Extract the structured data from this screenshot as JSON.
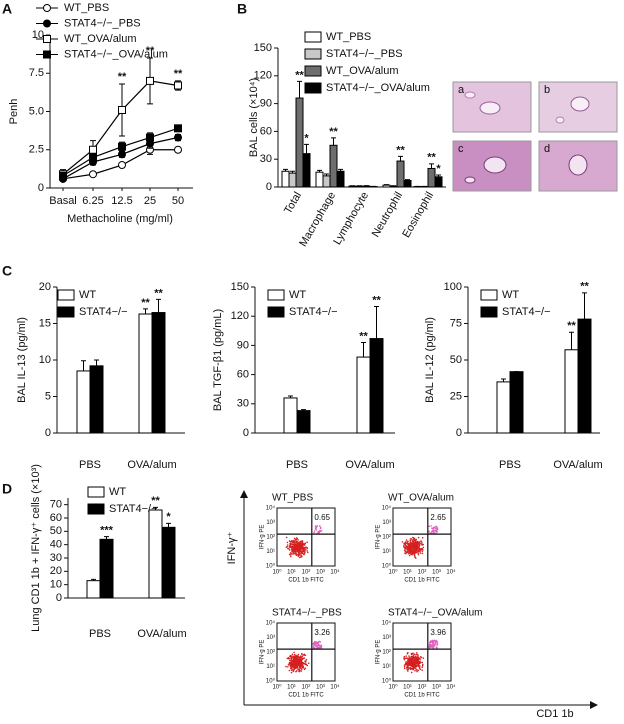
{
  "panels": [
    "A",
    "B",
    "C",
    "D"
  ],
  "chart_data": [
    {
      "type": "line",
      "ylabel": "Penh",
      "xlabel": "Methacholine (mg/ml)",
      "categories": [
        "Basal",
        "6.25",
        "12.5",
        "25",
        "50"
      ],
      "ylim": [
        0,
        10
      ],
      "yticks": [
        0,
        2.5,
        {
          "value": 5,
          "label": "5.0"
        },
        7.5,
        10
      ],
      "series": [
        {
          "name": "WT_PBS",
          "color": "#ffffff",
          "marker": "circle",
          "values": [
            0.6,
            0.9,
            1.5,
            2.5,
            2.5
          ],
          "errors": [
            0.1,
            0.1,
            0.1,
            0.3,
            0.1
          ]
        },
        {
          "name": "STAT4−/−_PBS",
          "color": "#000000",
          "marker": "circle",
          "values": [
            0.6,
            1.7,
            2.2,
            2.9,
            3.3
          ],
          "errors": [
            0.1,
            0.2,
            0.2,
            0.3,
            0.2
          ]
        },
        {
          "name": "WT_OVA/alum",
          "color": "#ffffff",
          "marker": "square",
          "values": [
            0.9,
            2.5,
            5.1,
            7.0,
            6.7
          ],
          "errors": [
            0.3,
            0.6,
            1.7,
            1.5,
            0.3
          ],
          "significance": [
            null,
            null,
            "**",
            "**",
            "**"
          ]
        },
        {
          "name": "STAT4−/−_OVA/alum",
          "color": "#000000",
          "marker": "square",
          "values": [
            0.8,
            2.0,
            2.7,
            3.3,
            3.9
          ],
          "errors": [
            0.1,
            0.2,
            0.3,
            0.3,
            0.2
          ]
        }
      ]
    },
    {
      "type": "bar",
      "ylabel": "BAL cells (×10⁴)",
      "categories": [
        "Total",
        "Macrophage",
        "Lymphocyte",
        "Neutrophil",
        "Eosinophil"
      ],
      "ylim": [
        0,
        150
      ],
      "yticks": [
        0,
        30,
        60,
        90,
        120,
        150
      ],
      "series": [
        {
          "name": "WT_PBS",
          "color": "#ffffff",
          "values": [
            17,
            16,
            1,
            2,
            0.5
          ],
          "errors": [
            2,
            2,
            0.3,
            0.5,
            0.2
          ]
        },
        {
          "name": "STAT4−/−_PBS",
          "color": "#c8c8c8",
          "values": [
            15,
            12,
            1,
            1,
            0.5
          ],
          "errors": [
            2,
            2,
            0.3,
            0.3,
            0.2
          ]
        },
        {
          "name": "WT_OVA/alum",
          "color": "#6e6e6e",
          "values": [
            96,
            45,
            1,
            28,
            20
          ],
          "errors": [
            18,
            8,
            0.5,
            5,
            5
          ],
          "significance": [
            "**",
            "**",
            null,
            "**",
            "**"
          ]
        },
        {
          "name": "STAT4−/−_OVA/alum",
          "color": "#000000",
          "values": [
            36,
            17,
            0.5,
            7,
            11
          ],
          "errors": [
            10,
            2,
            0.2,
            1,
            2
          ],
          "significance": [
            "*",
            null,
            null,
            null,
            "*"
          ]
        }
      ]
    },
    {
      "type": "bar",
      "ylabel": "BAL IL-13 (pg/ml)",
      "categories": [
        "PBS",
        "OVA/alum"
      ],
      "ylim": [
        0,
        20
      ],
      "yticks": [
        0,
        5,
        10,
        15,
        20
      ],
      "series": [
        {
          "name": "WT",
          "color": "#ffffff",
          "values": [
            8.5,
            16.3
          ],
          "errors": [
            1.4,
            0.7
          ],
          "significance": [
            null,
            "**"
          ]
        },
        {
          "name": "STAT4−/−",
          "color": "#000000",
          "values": [
            9.2,
            16.5
          ],
          "errors": [
            0.8,
            1.8
          ],
          "significance": [
            null,
            "**"
          ]
        }
      ]
    },
    {
      "type": "bar",
      "ylabel": "BAL TGF-β1 (pg/mL)",
      "categories": [
        "PBS",
        "OVA/alum"
      ],
      "ylim": [
        0,
        150
      ],
      "yticks": [
        0,
        30,
        60,
        90,
        120,
        150
      ],
      "series": [
        {
          "name": "WT",
          "color": "#ffffff",
          "values": [
            36,
            78
          ],
          "errors": [
            2,
            15
          ],
          "significance": [
            null,
            "**"
          ]
        },
        {
          "name": "STAT4−/−",
          "color": "#000000",
          "values": [
            23,
            97
          ],
          "errors": [
            1,
            33
          ],
          "significance": [
            null,
            "**"
          ]
        }
      ]
    },
    {
      "type": "bar",
      "ylabel": "BAL IL-12 (pg/ml)",
      "categories": [
        "PBS",
        "OVA/alum"
      ],
      "ylim": [
        0,
        100
      ],
      "yticks": [
        0,
        25,
        50,
        75,
        100
      ],
      "series": [
        {
          "name": "WT",
          "color": "#ffffff",
          "values": [
            35,
            57
          ],
          "errors": [
            2,
            12
          ],
          "significance": [
            null,
            "**"
          ]
        },
        {
          "name": "STAT4−/−",
          "color": "#000000",
          "values": [
            42,
            78
          ],
          "errors": [
            0,
            18
          ],
          "significance": [
            null,
            "**"
          ]
        }
      ]
    },
    {
      "type": "bar",
      "ylabel": "Lung CD1 1b + IFN-γ⁺ cells (×10³)",
      "categories": [
        "PBS",
        "OVA/alum"
      ],
      "ylim": [
        0,
        75
      ],
      "yticks": [
        0,
        10,
        20,
        30,
        40,
        50,
        60,
        70
      ],
      "series": [
        {
          "name": "WT",
          "color": "#ffffff",
          "values": [
            13,
            66
          ],
          "errors": [
            1,
            2
          ],
          "significance": [
            null,
            "**"
          ]
        },
        {
          "name": "STAT4−/−",
          "color": "#000000",
          "values": [
            44,
            53
          ],
          "errors": [
            2,
            3
          ],
          "significance": [
            "***",
            "*"
          ]
        }
      ]
    }
  ],
  "histology": {
    "labels": [
      "a",
      "b",
      "c",
      "d"
    ]
  },
  "flow": {
    "y_axis": "IFN-γ⁺",
    "x_axis": "CD1 1b",
    "plot_y_label": "IFN-g PE",
    "plot_x_label": "CD1 1b FITC",
    "ticks": [
      "10⁰",
      "10¹",
      "10²",
      "10³",
      "10⁴"
    ],
    "plots": [
      {
        "title": "WT_PBS",
        "quadrant": "0.65"
      },
      {
        "title": "WT_OVA/alum",
        "quadrant": "2.65"
      },
      {
        "title": "STAT4−/−_PBS",
        "quadrant": "3.26"
      },
      {
        "title": "STAT4−/−_OVA/alum",
        "quadrant": "3.96"
      }
    ]
  }
}
